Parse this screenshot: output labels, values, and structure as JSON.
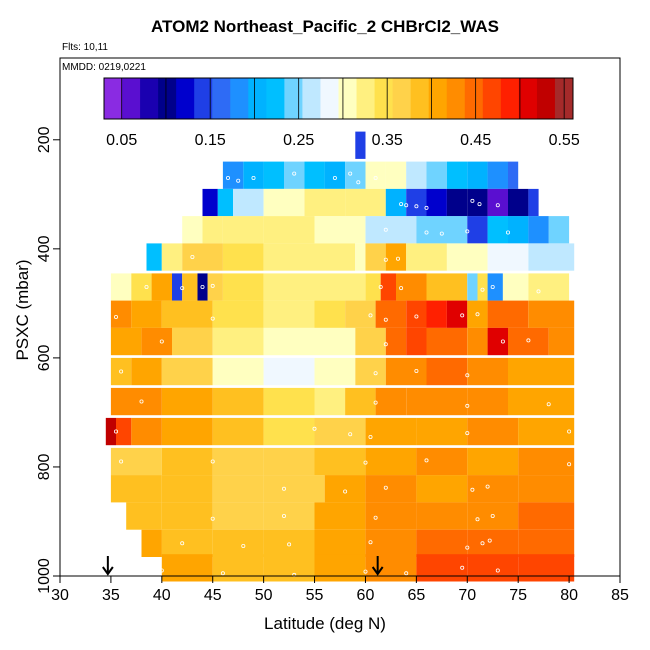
{
  "figure": {
    "title": "ATOM2 Northeast_Pacific_2 CHBrCl2_WAS",
    "flights_label": "Flts: 10,11",
    "date_label": "MMDD: 0219,0221"
  },
  "chart_data": {
    "type": "heatmap",
    "title": "ATOM2 Northeast_Pacific_2 CHBrCl2_WAS",
    "xlabel": "Latitude (deg N)",
    "ylabel": "PSXC (mbar)",
    "xlim": [
      30,
      85
    ],
    "ylim": [
      1000,
      50
    ],
    "y_inverted": true,
    "x_ticks": [
      30,
      35,
      40,
      45,
      50,
      55,
      60,
      65,
      70,
      75,
      80,
      85
    ],
    "y_ticks": [
      200,
      400,
      600,
      800,
      1000
    ],
    "colorbar": {
      "range": [
        0.03,
        0.56
      ],
      "ticks": [
        0.05,
        0.15,
        0.25,
        0.35,
        0.45,
        0.55
      ],
      "tick_labels": [
        "0.05",
        "0.15",
        "0.25",
        "0.35",
        "0.45",
        "0.55"
      ],
      "colors": [
        "#8a2be2",
        "#5a0fd0",
        "#1a00b0",
        "#00008b",
        "#0000cd",
        "#1f3fe6",
        "#2e6bf5",
        "#1e90ff",
        "#00b2ff",
        "#00bfff",
        "#6fd3ff",
        "#bfe8ff",
        "#f0f8ff",
        "#ffffc0",
        "#fff080",
        "#ffe14d",
        "#ffd24a",
        "#ffc020",
        "#ffa500",
        "#ff8c00",
        "#ff6a00",
        "#ff4500",
        "#ff2000",
        "#e00000",
        "#c00000",
        "#a52a2a"
      ]
    },
    "arrows_at_latitude": [
      34.7,
      61.2
    ],
    "rows": [
      {
        "p": 210,
        "cells": [
          [
            59.0,
            60.0,
            0.15
          ]
        ]
      },
      {
        "p": 265,
        "cells": [
          [
            46,
            48,
            0.18
          ],
          [
            48,
            50,
            0.2
          ],
          [
            50,
            52,
            0.22
          ],
          [
            52,
            54,
            0.24
          ],
          [
            54,
            56,
            0.22
          ],
          [
            56,
            58,
            0.2
          ],
          [
            58,
            60,
            0.25
          ],
          [
            60,
            62,
            0.3
          ],
          [
            62,
            64,
            0.3
          ],
          [
            64,
            66,
            0.27
          ],
          [
            66,
            68,
            0.25
          ],
          [
            68,
            70,
            0.22
          ],
          [
            70,
            72,
            0.2
          ],
          [
            72,
            74,
            0.18
          ],
          [
            74,
            75,
            0.16
          ]
        ]
      },
      {
        "p": 315,
        "cells": [
          [
            44,
            45.5,
            0.12
          ],
          [
            45.5,
            47,
            0.22
          ],
          [
            47,
            50,
            0.27
          ],
          [
            50,
            54,
            0.3
          ],
          [
            54,
            58,
            0.32
          ],
          [
            58,
            62,
            0.33
          ],
          [
            62,
            64,
            0.2
          ],
          [
            64,
            66,
            0.15
          ],
          [
            66,
            68,
            0.12
          ],
          [
            68,
            70,
            0.1
          ],
          [
            70,
            72,
            0.1
          ],
          [
            72,
            74,
            0.06
          ],
          [
            74,
            76,
            0.1
          ],
          [
            76,
            77,
            0.15
          ]
        ]
      },
      {
        "p": 365,
        "cells": [
          [
            42,
            44,
            0.3
          ],
          [
            44,
            46,
            0.32
          ],
          [
            46,
            50,
            0.33
          ],
          [
            50,
            55,
            0.32
          ],
          [
            55,
            60,
            0.31
          ],
          [
            60,
            65,
            0.27
          ],
          [
            65,
            70,
            0.25
          ],
          [
            70,
            72,
            0.15
          ],
          [
            72,
            74,
            0.22
          ],
          [
            74,
            76,
            0.2
          ],
          [
            76,
            78,
            0.18
          ],
          [
            78,
            80,
            0.25
          ]
        ]
      },
      {
        "p": 415,
        "cells": [
          [
            38.5,
            40,
            0.23
          ],
          [
            40,
            42,
            0.32
          ],
          [
            42,
            46,
            0.36
          ],
          [
            46,
            50,
            0.35
          ],
          [
            50,
            55,
            0.33
          ],
          [
            55,
            59,
            0.32
          ],
          [
            59,
            60,
            0.31
          ],
          [
            60,
            62,
            0.36
          ],
          [
            62,
            64,
            0.4
          ],
          [
            64,
            68,
            0.33
          ],
          [
            68,
            72,
            0.3
          ],
          [
            72,
            76,
            0.28
          ],
          [
            76,
            80.5,
            0.27
          ]
        ]
      },
      {
        "p": 470,
        "cells": [
          [
            35,
            37,
            0.3
          ],
          [
            37,
            39,
            0.35
          ],
          [
            39,
            41,
            0.4
          ],
          [
            41,
            42,
            0.15
          ],
          [
            42,
            43.5,
            0.38
          ],
          [
            43.5,
            44.5,
            0.1
          ],
          [
            44.5,
            46,
            0.36
          ],
          [
            46,
            50,
            0.34
          ],
          [
            50,
            55,
            0.33
          ],
          [
            55,
            60,
            0.32
          ],
          [
            60,
            61.5,
            0.34
          ],
          [
            61.5,
            63,
            0.46
          ],
          [
            63,
            66,
            0.43
          ],
          [
            66,
            70,
            0.38
          ],
          [
            70,
            71,
            0.25
          ],
          [
            71,
            72,
            0.35
          ],
          [
            72,
            73.5,
            0.18
          ],
          [
            73.5,
            76,
            0.3
          ],
          [
            76,
            80,
            0.33
          ]
        ]
      },
      {
        "p": 520,
        "cells": [
          [
            35,
            37,
            0.42
          ],
          [
            37,
            40,
            0.4
          ],
          [
            40,
            45,
            0.38
          ],
          [
            45,
            50,
            0.35
          ],
          [
            50,
            55,
            0.33
          ],
          [
            55,
            58,
            0.34
          ],
          [
            58,
            61,
            0.37
          ],
          [
            61,
            64,
            0.44
          ],
          [
            64,
            66,
            0.46
          ],
          [
            66,
            68,
            0.48
          ],
          [
            68,
            70,
            0.5
          ],
          [
            70,
            72,
            0.4
          ],
          [
            72,
            76,
            0.44
          ],
          [
            76,
            80.5,
            0.42
          ]
        ]
      },
      {
        "p": 570,
        "cells": [
          [
            35,
            38,
            0.4
          ],
          [
            38,
            41,
            0.42
          ],
          [
            41,
            45,
            0.37
          ],
          [
            45,
            50,
            0.33
          ],
          [
            50,
            55,
            0.31
          ],
          [
            55,
            59,
            0.3
          ],
          [
            59,
            62,
            0.36
          ],
          [
            62,
            64,
            0.44
          ],
          [
            64,
            66,
            0.47
          ],
          [
            66,
            70,
            0.44
          ],
          [
            70,
            72,
            0.43
          ],
          [
            72,
            74,
            0.5
          ],
          [
            74,
            78,
            0.44
          ],
          [
            78,
            80.5,
            0.42
          ]
        ]
      },
      {
        "p": 625,
        "cells": [
          [
            35,
            37,
            0.38
          ],
          [
            37,
            40,
            0.4
          ],
          [
            40,
            45,
            0.36
          ],
          [
            45,
            50,
            0.3
          ],
          [
            50,
            55,
            0.29
          ],
          [
            55,
            59,
            0.3
          ],
          [
            59,
            62,
            0.36
          ],
          [
            62,
            66,
            0.42
          ],
          [
            66,
            70,
            0.44
          ],
          [
            70,
            74,
            0.42
          ],
          [
            74,
            80.5,
            0.4
          ]
        ]
      },
      {
        "p": 680,
        "cells": [
          [
            35,
            40,
            0.42
          ],
          [
            40,
            45,
            0.41
          ],
          [
            45,
            50,
            0.38
          ],
          [
            50,
            55,
            0.34
          ],
          [
            55,
            58,
            0.33
          ],
          [
            58,
            61,
            0.38
          ],
          [
            61,
            64,
            0.42
          ],
          [
            64,
            70,
            0.42
          ],
          [
            70,
            74,
            0.42
          ],
          [
            74,
            80.5,
            0.41
          ]
        ]
      },
      {
        "p": 735,
        "cells": [
          [
            34.5,
            35.5,
            0.52
          ],
          [
            35.5,
            37,
            0.46
          ],
          [
            37,
            40,
            0.42
          ],
          [
            40,
            45,
            0.4
          ],
          [
            45,
            50,
            0.38
          ],
          [
            50,
            55,
            0.35
          ],
          [
            55,
            60,
            0.37
          ],
          [
            60,
            65,
            0.4
          ],
          [
            65,
            70,
            0.41
          ],
          [
            70,
            75,
            0.42
          ],
          [
            75,
            80.5,
            0.4
          ]
        ]
      },
      {
        "p": 790,
        "cells": [
          [
            35,
            40,
            0.37
          ],
          [
            40,
            45,
            0.38
          ],
          [
            45,
            50,
            0.37
          ],
          [
            50,
            55,
            0.36
          ],
          [
            55,
            60,
            0.39
          ],
          [
            60,
            65,
            0.4
          ],
          [
            65,
            70,
            0.42
          ],
          [
            70,
            75,
            0.41
          ],
          [
            75,
            80.5,
            0.42
          ]
        ]
      },
      {
        "p": 840,
        "cells": [
          [
            35,
            40,
            0.38
          ],
          [
            40,
            45,
            0.38
          ],
          [
            45,
            50,
            0.37
          ],
          [
            50,
            56,
            0.36
          ],
          [
            56,
            60,
            0.4
          ],
          [
            60,
            65,
            0.42
          ],
          [
            65,
            70,
            0.41
          ],
          [
            70,
            75,
            0.42
          ],
          [
            75,
            80.5,
            0.43
          ]
        ]
      },
      {
        "p": 890,
        "cells": [
          [
            36.5,
            40,
            0.39
          ],
          [
            40,
            45,
            0.38
          ],
          [
            45,
            50,
            0.36
          ],
          [
            50,
            55,
            0.37
          ],
          [
            55,
            60,
            0.4
          ],
          [
            60,
            65,
            0.42
          ],
          [
            65,
            70,
            0.43
          ],
          [
            70,
            75,
            0.43
          ],
          [
            75,
            80.5,
            0.44
          ]
        ]
      },
      {
        "p": 940,
        "cells": [
          [
            38,
            40,
            0.4
          ],
          [
            40,
            45,
            0.39
          ],
          [
            45,
            50,
            0.38
          ],
          [
            50,
            55,
            0.38
          ],
          [
            55,
            60,
            0.41
          ],
          [
            60,
            65,
            0.42
          ],
          [
            65,
            70,
            0.44
          ],
          [
            70,
            75,
            0.44
          ],
          [
            75,
            80.5,
            0.45
          ]
        ]
      },
      {
        "p": 985,
        "cells": [
          [
            40,
            45,
            0.4
          ],
          [
            45,
            50,
            0.39
          ],
          [
            50,
            55,
            0.39
          ],
          [
            55,
            60,
            0.41
          ],
          [
            60,
            65,
            0.43
          ],
          [
            65,
            70,
            0.46
          ],
          [
            70,
            75,
            0.47
          ],
          [
            75,
            80.5,
            0.46
          ]
        ]
      }
    ],
    "sample_points": [
      [
        46.5,
        270
      ],
      [
        47.5,
        275
      ],
      [
        49,
        270
      ],
      [
        53,
        262
      ],
      [
        57,
        270
      ],
      [
        58.5,
        262
      ],
      [
        59.3,
        278
      ],
      [
        61,
        270
      ],
      [
        64,
        320
      ],
      [
        65,
        322
      ],
      [
        70.5,
        312
      ],
      [
        71.2,
        318
      ],
      [
        73,
        320
      ],
      [
        63.5,
        318
      ],
      [
        66,
        325
      ],
      [
        62,
        365
      ],
      [
        66,
        370
      ],
      [
        67.5,
        372
      ],
      [
        70,
        368
      ],
      [
        74,
        370
      ],
      [
        43,
        415
      ],
      [
        62,
        420
      ],
      [
        63.2,
        418
      ],
      [
        38.5,
        470
      ],
      [
        42,
        472
      ],
      [
        44,
        470
      ],
      [
        45,
        468
      ],
      [
        61.5,
        470
      ],
      [
        63.5,
        472
      ],
      [
        71.5,
        475
      ],
      [
        72.5,
        470
      ],
      [
        77,
        478
      ],
      [
        35.5,
        525
      ],
      [
        45,
        528
      ],
      [
        60.5,
        522
      ],
      [
        62,
        530
      ],
      [
        65,
        524
      ],
      [
        69.5,
        522
      ],
      [
        71,
        520
      ],
      [
        40,
        570
      ],
      [
        62,
        575
      ],
      [
        73.5,
        570
      ],
      [
        76,
        568
      ],
      [
        36,
        625
      ],
      [
        61,
        628
      ],
      [
        65,
        624
      ],
      [
        70,
        632
      ],
      [
        38,
        680
      ],
      [
        61,
        682
      ],
      [
        70,
        688
      ],
      [
        78,
        685
      ],
      [
        35.5,
        735
      ],
      [
        55,
        730
      ],
      [
        58.5,
        740
      ],
      [
        60.5,
        745
      ],
      [
        70,
        738
      ],
      [
        80,
        735
      ],
      [
        36,
        790
      ],
      [
        45,
        790
      ],
      [
        60,
        792
      ],
      [
        66,
        788
      ],
      [
        80,
        795
      ],
      [
        52,
        840
      ],
      [
        58,
        845
      ],
      [
        62,
        838
      ],
      [
        70.5,
        842
      ],
      [
        72,
        836
      ],
      [
        45,
        895
      ],
      [
        52,
        890
      ],
      [
        61,
        893
      ],
      [
        71,
        896
      ],
      [
        72.5,
        890
      ],
      [
        42,
        940
      ],
      [
        48,
        945
      ],
      [
        52.5,
        942
      ],
      [
        60.5,
        938
      ],
      [
        70,
        948
      ],
      [
        71.5,
        940
      ],
      [
        72.2,
        935
      ],
      [
        40,
        990
      ],
      [
        46,
        995
      ],
      [
        53,
        998
      ],
      [
        60,
        992
      ],
      [
        64,
        995
      ],
      [
        69.5,
        985
      ],
      [
        73,
        990
      ]
    ]
  }
}
